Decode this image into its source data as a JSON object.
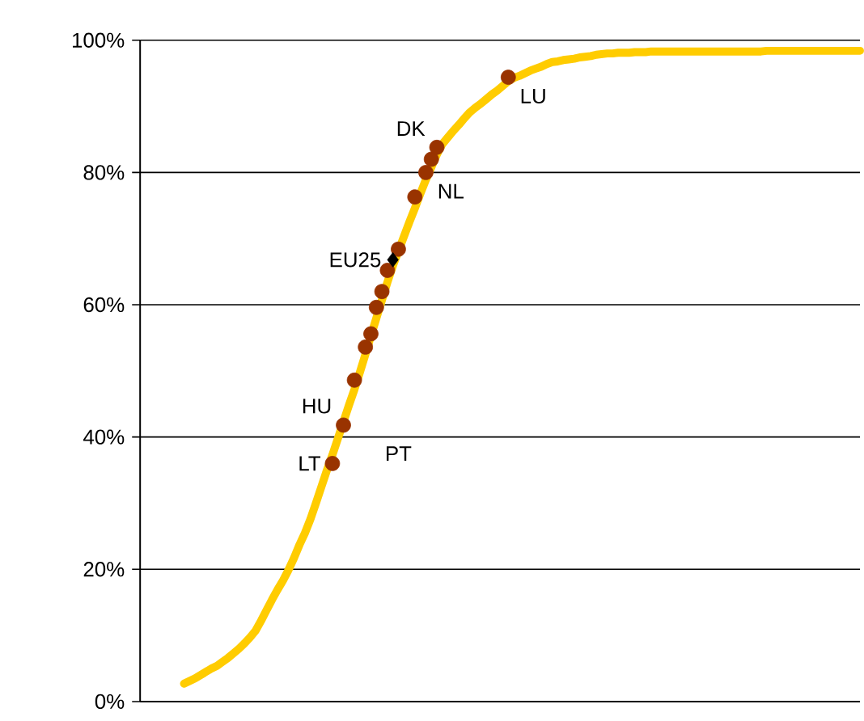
{
  "chart_data": {
    "type": "line",
    "categories": [
      null,
      null,
      null,
      null,
      null,
      null,
      null,
      null,
      null,
      null,
      null,
      null,
      null,
      null,
      null,
      null,
      null,
      null,
      null,
      null,
      null,
      null,
      null,
      null,
      null,
      null,
      null,
      null,
      null,
      null,
      null,
      null,
      null,
      null,
      null,
      null,
      null,
      null,
      null,
      null,
      null,
      null,
      null,
      null,
      null,
      null,
      null,
      null,
      null,
      null,
      null,
      null,
      null,
      null,
      null,
      null,
      null,
      null,
      null,
      null,
      null,
      null,
      null,
      null,
      null,
      null,
      null,
      null,
      null,
      null,
      null,
      null,
      null,
      null,
      null,
      null,
      null,
      null,
      null,
      null,
      null,
      null,
      null,
      null,
      null,
      null,
      null,
      null,
      null,
      null,
      null,
      null,
      null,
      null,
      null,
      null,
      null,
      null,
      null,
      null,
      null,
      null,
      null,
      null,
      null,
      null,
      null,
      null,
      null,
      null,
      null,
      null,
      null,
      null,
      null,
      null,
      null,
      null,
      null,
      null,
      null,
      null,
      null,
      null,
      null,
      null,
      null,
      null,
      null,
      null,
      null,
      null
    ],
    "series": [
      {
        "marker": "none",
        "color": "#ffcc00",
        "values": [
          null,
          null,
          null,
          null,
          null,
          null,
          null,
          null,
          2.7,
          3.1,
          3.5,
          4.0,
          4.5,
          5.0,
          5.4,
          6.0,
          6.6,
          7.3,
          8.0,
          8.8,
          9.7,
          10.7,
          12.2,
          13.8,
          15.4,
          16.9,
          18.3,
          19.9,
          21.7,
          23.7,
          25.5,
          27.6,
          30.0,
          32.5,
          35.0,
          37.3,
          39.8,
          42.3,
          44.8,
          47.2,
          49.8,
          52.5,
          55.3,
          58.0,
          60.7,
          63.4,
          65.9,
          68.1,
          70.3,
          72.5,
          74.6,
          76.8,
          78.9,
          80.8,
          82.7,
          84.3,
          85.3,
          86.3,
          87.2,
          88.2,
          89.1,
          89.8,
          90.4,
          91.1,
          91.8,
          92.4,
          93.1,
          93.8,
          94.3,
          94.6,
          95.0,
          95.4,
          95.7,
          96.0,
          96.4,
          96.7,
          96.8,
          97.0,
          97.1,
          97.2,
          97.4,
          97.5,
          97.6,
          97.8,
          97.9,
          98.0,
          98.0,
          98.1,
          98.1,
          98.1,
          98.2,
          98.2,
          98.2,
          98.3,
          98.3,
          98.3,
          98.3,
          98.3,
          98.3,
          98.3,
          98.3,
          98.3,
          98.3,
          98.3,
          98.3,
          98.3,
          98.3,
          98.3,
          98.3,
          98.3,
          98.3,
          98.3,
          98.3,
          98.3,
          98.4,
          98.4,
          98.4,
          98.4,
          98.4,
          98.4,
          98.4,
          98.4,
          98.4,
          98.4,
          98.4,
          98.4,
          98.4,
          98.4,
          98.4,
          98.4,
          98.4,
          98.4
        ]
      },
      {
        "type": "scatter",
        "marker": "circle",
        "color": "#993300",
        "values": [
          null,
          null,
          null,
          null,
          null,
          null,
          null,
          null,
          null,
          null,
          null,
          null,
          null,
          null,
          null,
          null,
          null,
          null,
          null,
          null,
          null,
          null,
          null,
          null,
          null,
          null,
          null,
          null,
          null,
          null,
          null,
          null,
          null,
          null,
          null,
          36.0,
          null,
          41.8,
          null,
          48.6,
          null,
          53.6,
          55.6,
          59.6,
          62.0,
          65.2,
          null,
          68.4,
          null,
          null,
          76.3,
          null,
          80.0,
          82.0,
          83.8,
          null,
          null,
          null,
          null,
          null,
          null,
          null,
          null,
          null,
          null,
          null,
          null,
          94.4,
          null,
          null,
          null,
          null,
          null,
          null,
          null,
          null,
          null,
          null,
          null,
          null,
          null,
          null,
          null,
          null,
          null,
          null,
          null,
          null,
          null,
          null,
          null,
          null,
          null,
          null,
          null,
          null,
          null,
          null,
          null,
          null,
          null,
          null,
          null,
          null,
          null,
          null,
          null,
          null,
          null,
          null,
          null,
          null,
          null,
          null,
          null,
          null,
          null,
          null,
          null,
          null,
          null,
          null,
          null,
          null,
          null,
          null,
          null,
          null,
          null,
          null,
          null,
          null
        ],
        "value_labels": [
          null,
          null,
          null,
          null,
          null,
          null,
          null,
          null,
          null,
          null,
          null,
          null,
          null,
          null,
          null,
          null,
          null,
          null,
          null,
          null,
          null,
          null,
          null,
          null,
          null,
          null,
          null,
          null,
          null,
          null,
          null,
          null,
          null,
          null,
          null,
          "LT",
          null,
          "HU",
          null,
          null,
          null,
          null,
          null,
          null,
          null,
          null,
          null,
          null,
          null,
          null,
          null,
          null,
          "NL",
          null,
          "DK",
          null,
          null,
          null,
          null,
          null,
          null,
          null,
          null,
          null,
          null,
          null,
          null,
          "LU",
          null,
          null,
          null,
          null,
          null,
          null,
          null,
          null,
          null,
          null,
          null,
          null,
          null,
          null,
          null,
          null,
          null,
          null,
          null,
          null,
          null,
          null,
          null,
          null,
          null,
          null,
          null,
          null,
          null,
          null,
          null,
          null,
          null,
          null,
          null,
          null,
          null,
          null,
          null,
          null,
          null,
          null,
          null,
          null,
          null,
          null,
          null,
          null,
          null,
          null,
          null,
          null,
          null,
          null,
          null,
          null,
          null,
          null,
          null,
          null,
          null,
          null,
          null,
          null
        ]
      },
      {
        "type": "scatter",
        "marker": "diamond",
        "color": "#000000",
        "values": [
          null,
          null,
          null,
          null,
          null,
          null,
          null,
          null,
          null,
          null,
          null,
          null,
          null,
          null,
          null,
          null,
          null,
          null,
          null,
          null,
          null,
          null,
          null,
          null,
          null,
          null,
          null,
          null,
          null,
          null,
          null,
          null,
          null,
          null,
          null,
          null,
          null,
          null,
          null,
          null,
          null,
          null,
          null,
          null,
          null,
          null,
          66.8,
          null,
          null,
          null,
          null,
          null,
          null,
          null,
          null,
          null,
          null,
          null,
          null,
          null,
          null,
          null,
          null,
          null,
          null,
          null,
          null,
          null,
          null,
          null,
          null,
          null,
          null,
          null,
          null,
          null,
          null,
          null,
          null,
          null,
          null,
          null,
          null,
          null,
          null,
          null,
          null,
          null,
          null,
          null,
          null,
          null,
          null,
          null,
          null,
          null,
          null,
          null,
          null,
          null,
          null,
          null,
          null,
          null,
          null,
          null,
          null,
          null,
          null,
          null,
          null,
          null,
          null,
          null,
          null,
          null,
          null,
          null,
          null,
          null,
          null,
          null,
          null,
          null,
          null,
          null,
          null,
          null,
          null,
          null,
          null,
          null
        ],
        "value_labels": [
          null,
          null,
          null,
          null,
          null,
          null,
          null,
          null,
          null,
          null,
          null,
          null,
          null,
          null,
          null,
          null,
          null,
          null,
          null,
          null,
          null,
          null,
          null,
          null,
          null,
          null,
          null,
          null,
          null,
          null,
          null,
          null,
          null,
          null,
          null,
          null,
          null,
          null,
          null,
          null,
          null,
          null,
          null,
          null,
          null,
          null,
          "EU25",
          null,
          null,
          null,
          null,
          null,
          null,
          null,
          null,
          null,
          null,
          null,
          null,
          null,
          null,
          null,
          null,
          null,
          null,
          null,
          null,
          null,
          null,
          null,
          null,
          null,
          null,
          null,
          null,
          null,
          null,
          null,
          null,
          null,
          null,
          null,
          null,
          null,
          null,
          null,
          null,
          null,
          null,
          null,
          null,
          null,
          null,
          null,
          null,
          null,
          null,
          null,
          null,
          null,
          null,
          null,
          null,
          null,
          null,
          null,
          null,
          null,
          null,
          null,
          null,
          null,
          null,
          null,
          null,
          null,
          null,
          null,
          null,
          null,
          null,
          null,
          null,
          null,
          null,
          null,
          null,
          null,
          null,
          null,
          null,
          null
        ]
      }
    ],
    "annotations": [
      "PT"
    ],
    "ylim": [
      0,
      100
    ],
    "yticks": [
      {
        "value": 0,
        "label": "0%"
      },
      {
        "value": 20,
        "label": "20%"
      },
      {
        "value": 40,
        "label": "40%"
      },
      {
        "value": 60,
        "label": "60%"
      },
      {
        "value": 80,
        "label": "80%"
      },
      {
        "value": 100,
        "label": "100%"
      }
    ],
    "grid": "y"
  }
}
